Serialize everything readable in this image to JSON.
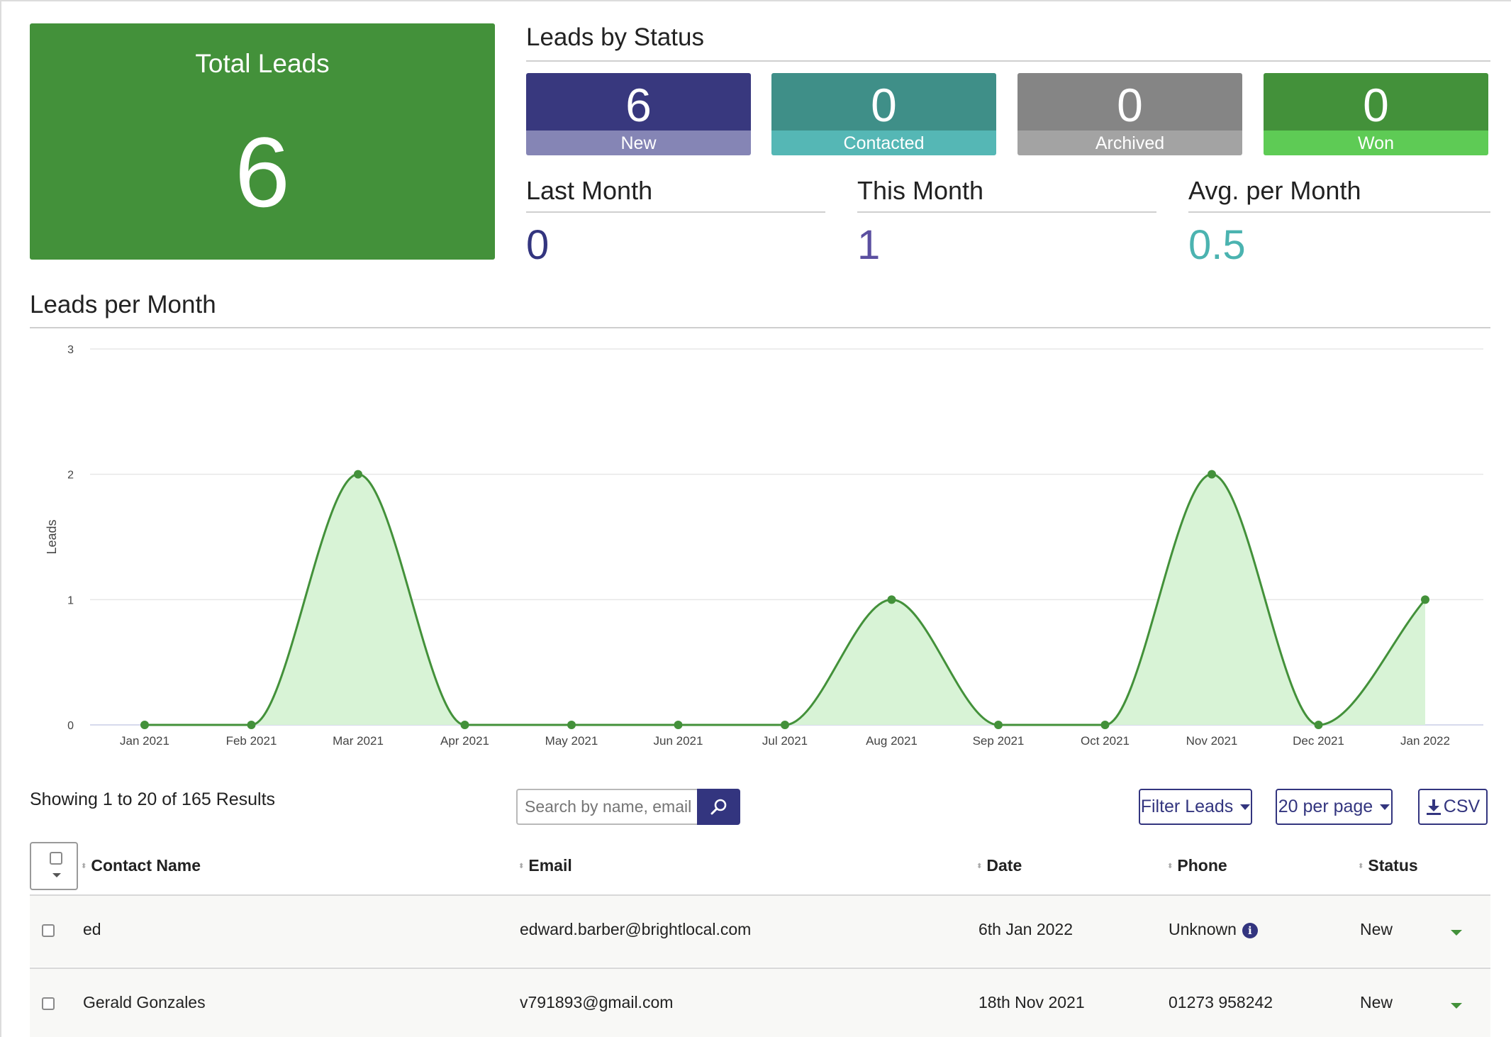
{
  "total": {
    "label": "Total Leads",
    "value": "6"
  },
  "status_section": {
    "title": "Leads by Status",
    "items": [
      {
        "value": "6",
        "label": "New",
        "top_color": "#38387e",
        "bottom_color": "#8585b5"
      },
      {
        "value": "0",
        "label": "Contacted",
        "top_color": "#3f8f88",
        "bottom_color": "#55b7b5"
      },
      {
        "value": "0",
        "label": "Archived",
        "top_color": "#858585",
        "bottom_color": "#a3a3a3"
      },
      {
        "value": "0",
        "label": "Won",
        "top_color": "#43913a",
        "bottom_color": "#5ecb55"
      }
    ]
  },
  "stats": [
    {
      "title": "Last Month",
      "value": "0",
      "color": "#33357f"
    },
    {
      "title": "This Month",
      "value": "1",
      "color": "#5b4fa0"
    },
    {
      "title": "Avg. per Month",
      "value": "0.5",
      "color": "#4bb3b0"
    }
  ],
  "chart_section": {
    "title": "Leads per Month"
  },
  "chart_data": {
    "type": "area",
    "title": "Leads per Month",
    "xlabel": "",
    "ylabel": "Leads",
    "categories": [
      "Jan 2021",
      "Feb 2021",
      "Mar 2021",
      "Apr 2021",
      "May 2021",
      "Jun 2021",
      "Jul 2021",
      "Aug 2021",
      "Sep 2021",
      "Oct 2021",
      "Nov 2021",
      "Dec 2021",
      "Jan 2022"
    ],
    "values": [
      0,
      0,
      2,
      0,
      0,
      0,
      0,
      1,
      0,
      0,
      2,
      0,
      1
    ],
    "ylim": [
      0,
      3
    ],
    "yticks": [
      "0",
      "1",
      "2",
      "3"
    ],
    "grid": true,
    "line_color": "#43913a",
    "fill_color": "#d8f3d6"
  },
  "toolbar": {
    "showing": "Showing 1 to 20 of 165 Results",
    "search_placeholder": "Search by name, email or phone",
    "filter_label": "Filter Leads",
    "per_page_label": "20 per page",
    "csv_label": "CSV"
  },
  "table": {
    "headers": {
      "name": "Contact Name",
      "email": "Email",
      "date": "Date",
      "phone": "Phone",
      "status": "Status"
    },
    "rows": [
      {
        "name": "ed",
        "email": "edward.barber@brightlocal.com",
        "date": "6th Jan 2022",
        "phone": "Unknown",
        "status": "New"
      },
      {
        "name": "Gerald Gonzales",
        "email": "v791893@gmail.com",
        "date": "18th Nov 2021",
        "phone": "01273 958242",
        "status": "New"
      }
    ]
  }
}
